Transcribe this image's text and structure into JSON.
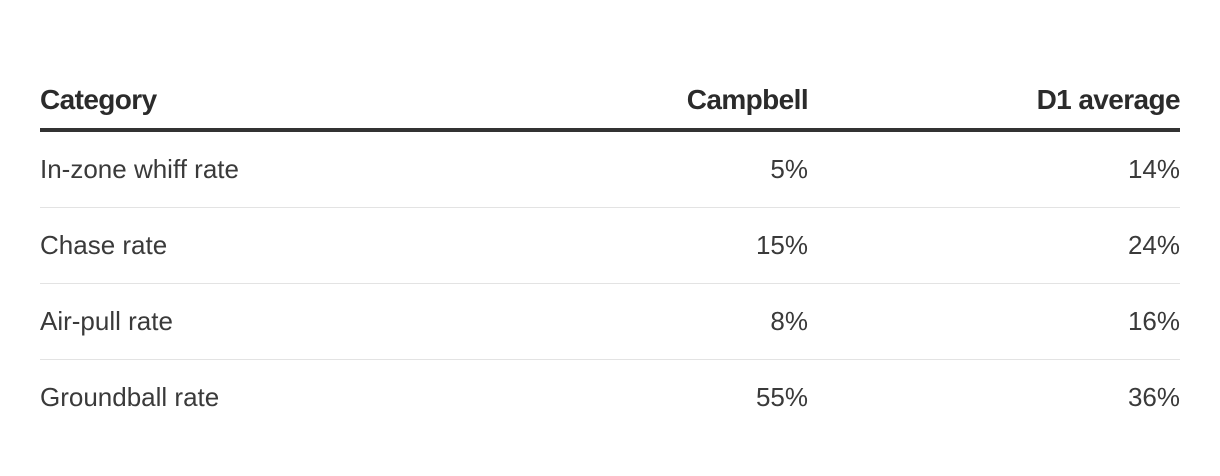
{
  "table": {
    "columns": [
      "Category",
      "Campbell",
      "D1 average"
    ],
    "rows": [
      {
        "category": "In-zone whiff rate",
        "campbell": "5%",
        "d1_average": "14%"
      },
      {
        "category": "Chase rate",
        "campbell": "15%",
        "d1_average": "24%"
      },
      {
        "category": "Air-pull rate",
        "campbell": "8%",
        "d1_average": "16%"
      },
      {
        "category": "Groundball rate",
        "campbell": "55%",
        "d1_average": "36%"
      }
    ]
  },
  "chart_data": {
    "type": "table",
    "columns": [
      "Category",
      "Campbell",
      "D1 average"
    ],
    "rows": [
      [
        "In-zone whiff rate",
        "5%",
        "14%"
      ],
      [
        "Chase rate",
        "15%",
        "24%"
      ],
      [
        "Air-pull rate",
        "8%",
        "16%"
      ],
      [
        "Groundball rate",
        "55%",
        "36%"
      ]
    ],
    "series": [
      {
        "name": "Campbell",
        "values": [
          5,
          15,
          8,
          55
        ]
      },
      {
        "name": "D1 average",
        "values": [
          14,
          24,
          16,
          36
        ]
      }
    ],
    "categories": [
      "In-zone whiff rate",
      "Chase rate",
      "Air-pull rate",
      "Groundball rate"
    ],
    "unit": "%"
  }
}
